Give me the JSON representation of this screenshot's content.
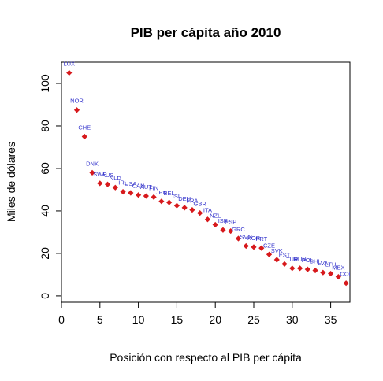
{
  "chart_data": {
    "type": "scatter",
    "title": "PIB per cápita año 2010",
    "xlabel": "Posición con respecto al PIB per cápita",
    "ylabel": "Miles de dólares",
    "xlim": [
      0,
      37.5
    ],
    "ylim": [
      -3,
      110
    ],
    "x_ticks": [
      0,
      5,
      10,
      15,
      20,
      25,
      30,
      35
    ],
    "y_ticks": [
      0,
      20,
      40,
      60,
      80,
      100
    ],
    "point_color": "#d7191c",
    "label_color": "#3333cc",
    "points": [
      {
        "x": 1,
        "y": 105,
        "label": "LUX"
      },
      {
        "x": 2,
        "y": 87.5,
        "label": "NOR"
      },
      {
        "x": 3,
        "y": 75,
        "label": "CHE"
      },
      {
        "x": 4,
        "y": 58,
        "label": "DNK"
      },
      {
        "x": 5,
        "y": 53,
        "label": "SWE"
      },
      {
        "x": 6,
        "y": 52.5,
        "label": "AUS"
      },
      {
        "x": 7,
        "y": 51,
        "label": "NLD"
      },
      {
        "x": 8,
        "y": 49,
        "label": "IRL"
      },
      {
        "x": 9,
        "y": 48.5,
        "label": "USA"
      },
      {
        "x": 10,
        "y": 47.5,
        "label": "CAN"
      },
      {
        "x": 11,
        "y": 47,
        "label": "AUT"
      },
      {
        "x": 12,
        "y": 46.5,
        "label": "FIN"
      },
      {
        "x": 13,
        "y": 44.5,
        "label": "JPN"
      },
      {
        "x": 14,
        "y": 44,
        "label": "BEL"
      },
      {
        "x": 15,
        "y": 42.5,
        "label": "ISL"
      },
      {
        "x": 16,
        "y": 41.5,
        "label": "DEU"
      },
      {
        "x": 17,
        "y": 40.5,
        "label": "FRA"
      },
      {
        "x": 18,
        "y": 39,
        "label": "GBR"
      },
      {
        "x": 19,
        "y": 36,
        "label": "ITA"
      },
      {
        "x": 20,
        "y": 33.5,
        "label": "NZL"
      },
      {
        "x": 21,
        "y": 31,
        "label": "ISR"
      },
      {
        "x": 22,
        "y": 30.5,
        "label": "ESP"
      },
      {
        "x": 23,
        "y": 27,
        "label": "GRC"
      },
      {
        "x": 24,
        "y": 23.5,
        "label": "SVN"
      },
      {
        "x": 25,
        "y": 23,
        "label": "KOR"
      },
      {
        "x": 26,
        "y": 22.5,
        "label": "PRT"
      },
      {
        "x": 27,
        "y": 19.5,
        "label": "CZE"
      },
      {
        "x": 28,
        "y": 17,
        "label": "SVK"
      },
      {
        "x": 29,
        "y": 15,
        "label": "EST"
      },
      {
        "x": 30,
        "y": 13,
        "label": "TUR"
      },
      {
        "x": 31,
        "y": 13,
        "label": "HUN"
      },
      {
        "x": 32,
        "y": 12.5,
        "label": "POL"
      },
      {
        "x": 33,
        "y": 12,
        "label": "CHL"
      },
      {
        "x": 34,
        "y": 11,
        "label": "LVA"
      },
      {
        "x": 35,
        "y": 10.5,
        "label": "LTU"
      },
      {
        "x": 36,
        "y": 9,
        "label": "MEX"
      },
      {
        "x": 37,
        "y": 6,
        "label": "COL"
      }
    ]
  }
}
